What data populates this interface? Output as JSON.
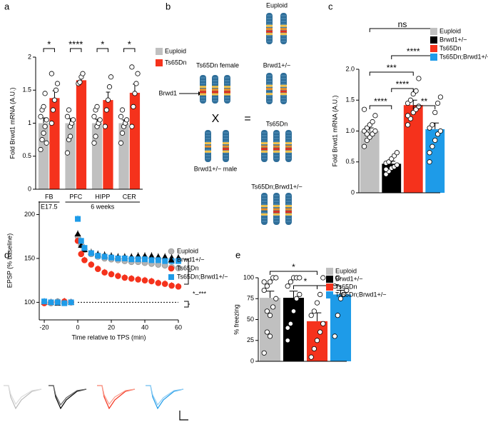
{
  "chart_data": [
    {
      "type": "bar",
      "panel": "a",
      "ylabel": "Fold Brwd1 mRNA (A.U.)",
      "categories": [
        "FB",
        "PFC",
        "HIPP",
        "CER"
      ],
      "group_labels": [
        "E17.5",
        "6 weeks"
      ],
      "ylim": [
        0,
        2
      ],
      "yticks": [
        0,
        0.5,
        1,
        1.5,
        2
      ],
      "series": [
        {
          "name": "Euploid",
          "color": "#c0c0c0",
          "values": [
            1.0,
            1.0,
            1.0,
            1.0
          ],
          "errors": [
            0.08,
            0.07,
            0.06,
            0.05
          ],
          "points": [
            [
              0.6,
              0.75,
              0.85,
              0.95,
              1.05,
              1.1,
              1.2,
              1.25,
              1.45,
              0.7
            ],
            [
              0.55,
              0.75,
              0.95,
              1.0,
              1.05,
              1.1,
              1.2,
              0.8
            ],
            [
              0.7,
              0.8,
              0.95,
              1.0,
              1.05,
              1.1,
              1.2,
              1.25
            ],
            [
              0.7,
              0.85,
              0.95,
              1.0,
              1.05,
              1.1,
              1.2
            ]
          ]
        },
        {
          "name": "Ts65Dn",
          "color": "#f5321c",
          "values": [
            1.38,
            1.65,
            1.35,
            1.46
          ],
          "errors": [
            0.11,
            0.05,
            0.12,
            0.13
          ],
          "points": [
            [
              1.0,
              1.2,
              1.35,
              1.5,
              1.6,
              1.75
            ],
            [
              1.6,
              1.62,
              1.7,
              1.75
            ],
            [
              0.95,
              1.2,
              1.35,
              1.55,
              1.7
            ],
            [
              0.95,
              1.25,
              1.45,
              1.6,
              1.75,
              1.85
            ]
          ]
        }
      ],
      "annotations": [
        "*",
        "****",
        "*",
        "*"
      ]
    },
    {
      "type": "bar",
      "panel": "c",
      "ylabel": "Fold Brwd1 mRNA (A.U.)",
      "ylim": [
        0,
        2
      ],
      "yticks": [
        0,
        0.5,
        {
          "value": 1,
          "label": "1.0"
        },
        1.5,
        {
          "value": 2,
          "label": "2.0"
        }
      ],
      "series": [
        {
          "name": "Euploid",
          "color": "#c0c0c0",
          "values": [
            1.0
          ],
          "errors": [
            0.05
          ],
          "points": [
            [
              0.75,
              0.85,
              0.9,
              0.95,
              1.0,
              1.0,
              1.05,
              1.1,
              1.15,
              1.25,
              1.35,
              0.95
            ]
          ]
        },
        {
          "name": "Brwd1+/−",
          "color": "#000000",
          "values": [
            0.47
          ],
          "errors": [
            0.04
          ],
          "points": [
            [
              0.3,
              0.35,
              0.4,
              0.42,
              0.45,
              0.48,
              0.5,
              0.55,
              0.6,
              0.65,
              0.38
            ]
          ]
        },
        {
          "name": "Ts65Dn",
          "color": "#f5321c",
          "values": [
            1.42
          ],
          "errors": [
            0.08
          ],
          "points": [
            [
              1.1,
              1.2,
              1.3,
              1.35,
              1.4,
              1.45,
              1.5,
              1.6,
              1.65,
              1.85,
              1.25
            ]
          ]
        },
        {
          "name": "Ts65Dn;Brwd1+/−",
          "color": "#1e9be8",
          "values": [
            1.03
          ],
          "errors": [
            0.1
          ],
          "points": [
            [
              0.5,
              0.75,
              0.85,
              0.95,
              1.0,
              1.05,
              1.1,
              1.3,
              1.45,
              1.55,
              0.65
            ]
          ]
        }
      ],
      "annotations": [
        "ns",
        "****",
        "***",
        "****",
        "****",
        "**"
      ]
    },
    {
      "type": "line",
      "panel": "d",
      "ylabel": "EPSP (% baseline)",
      "xlabel": "Time relative to TPS (min)",
      "x": [
        -20,
        -16,
        -12,
        -8,
        -4,
        0,
        2,
        4,
        8,
        12,
        16,
        20,
        24,
        28,
        32,
        36,
        40,
        44,
        48,
        52,
        56,
        60
      ],
      "xlim": [
        -23,
        60
      ],
      "xticks": [
        -20,
        0,
        20,
        40,
        60
      ],
      "ylim": [
        80,
        215
      ],
      "yticks": [
        100,
        150,
        200
      ],
      "series": [
        {
          "name": "Euploid",
          "color": "#b4b4b4",
          "marker": "circle",
          "values": [
            100,
            99,
            101,
            100,
            100,
            175,
            165,
            160,
            155,
            152,
            150,
            149,
            148,
            147,
            146,
            146,
            145,
            144,
            143,
            142,
            140,
            139
          ]
        },
        {
          "name": "Brwd1+/−",
          "color": "#000000",
          "marker": "triangle",
          "values": [
            100,
            100,
            99,
            101,
            100,
            178,
            165,
            160,
            157,
            155,
            154,
            153,
            152,
            152,
            152,
            153,
            153,
            153,
            152,
            152,
            151,
            151
          ]
        },
        {
          "name": "Ts65Dn",
          "color": "#f5321c",
          "marker": "circle",
          "values": [
            99,
            100,
            100,
            101,
            100,
            170,
            155,
            148,
            143,
            138,
            134,
            132,
            130,
            128,
            127,
            126,
            125,
            124,
            122,
            121,
            119,
            118
          ]
        },
        {
          "name": "Ts65Dn;Brwd1+/−",
          "color": "#1e9be8",
          "marker": "square",
          "values": [
            101,
            100,
            100,
            99,
            100,
            195,
            170,
            162,
            156,
            153,
            152,
            151,
            150,
            150,
            149,
            149,
            149,
            148,
            148,
            147,
            147,
            147
          ]
        }
      ],
      "annotation": "*–***"
    },
    {
      "type": "bar",
      "panel": "e",
      "ylabel": "% freezing",
      "ylim": [
        0,
        100
      ],
      "yticks": [
        0,
        25,
        50,
        75,
        100
      ],
      "series": [
        {
          "name": "Euploid",
          "color": "#c0c0c0",
          "values": [
            76
          ],
          "errors": [
            8
          ],
          "points": [
            [
              10,
              35,
              55,
              65,
              75,
              85,
              90,
              95,
              100,
              100,
              95,
              60,
              30
            ]
          ]
        },
        {
          "name": "Brwd1+/−",
          "color": "#000000",
          "values": [
            76
          ],
          "errors": [
            8
          ],
          "points": [
            [
              25,
              45,
              60,
              75,
              80,
              90,
              95,
              100,
              100,
              100,
              40
            ]
          ]
        },
        {
          "name": "Ts65Dn",
          "color": "#f5321c",
          "values": [
            48
          ],
          "errors": [
            10
          ],
          "points": [
            [
              5,
              15,
              25,
              35,
              45,
              55,
              60,
              70,
              80,
              100
            ]
          ]
        },
        {
          "name": "Ts65Dn;Brwd1+/−",
          "color": "#1e9be8",
          "values": [
            80
          ],
          "errors": [
            5
          ],
          "points": [
            [
              30,
              55,
              75,
              80,
              85,
              90,
              100
            ]
          ]
        }
      ],
      "annotations": [
        "*",
        "*",
        "*"
      ]
    }
  ],
  "diagram": {
    "panel": "b",
    "female": "Ts65Dn female",
    "gene": "Brwd1",
    "male": "Brwd1+/− male",
    "cross": "X",
    "equals": "=",
    "offspring": [
      "Euploid",
      "Brwd1+/−",
      "Ts65Dn",
      "Ts65Dn;Brwd1+/−"
    ]
  }
}
